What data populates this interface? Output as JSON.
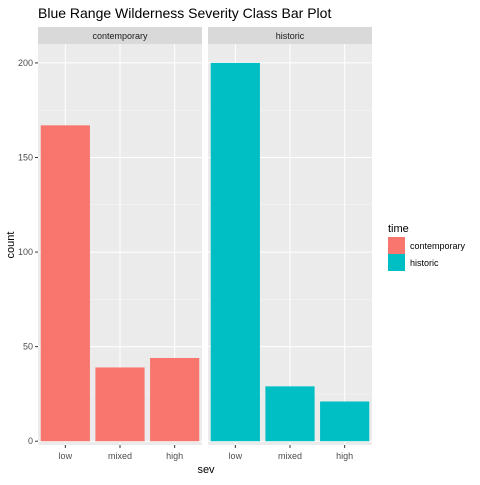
{
  "chart_data": {
    "type": "bar",
    "title": "Blue Range Wilderness Severity Class Bar Plot",
    "xlabel": "sev",
    "ylabel": "count",
    "categories": [
      "low",
      "mixed",
      "high"
    ],
    "y_ticks": [
      0,
      50,
      100,
      150,
      200
    ],
    "ylim": [
      -2,
      210
    ],
    "grid": true,
    "facets": [
      {
        "label": "contemporary",
        "series": "contemporary",
        "values": [
          167,
          39,
          44
        ]
      },
      {
        "label": "historic",
        "series": "historic",
        "values": [
          200,
          29,
          21
        ]
      }
    ],
    "legend": {
      "title": "time",
      "position": "right",
      "entries": [
        {
          "label": "contemporary",
          "color": "#F8766D"
        },
        {
          "label": "historic",
          "color": "#00BFC4"
        }
      ]
    }
  },
  "colors": {
    "panel_background": "#EBEBEB",
    "grid_major": "#FFFFFF",
    "strip_background": "#D9D9D9",
    "text_dark": "#1A1A1A",
    "text_axis": "#4D4D4D"
  }
}
